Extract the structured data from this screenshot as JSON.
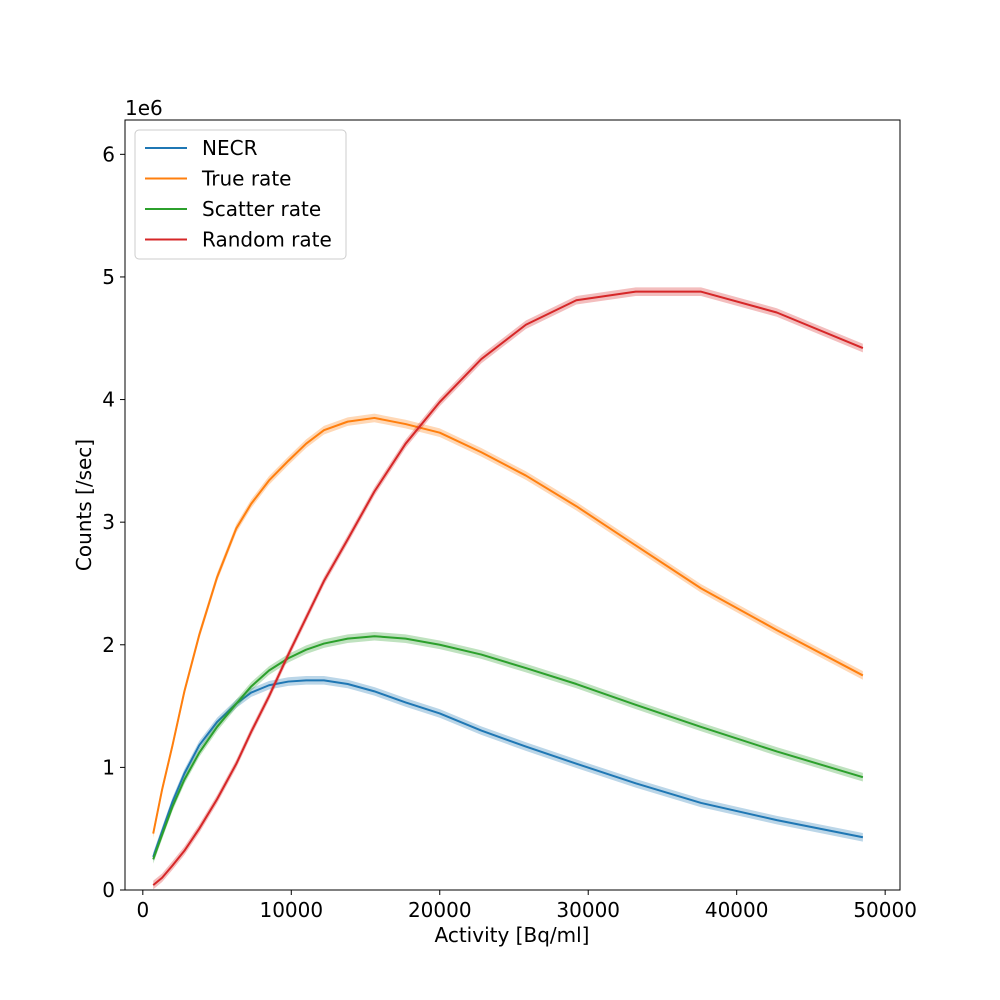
{
  "chart_data": {
    "type": "line",
    "title": "",
    "xlabel": "Activity [Bq/ml]",
    "ylabel": "Counts [/sec]",
    "y_multiplier": "1e6",
    "xlim": [
      -1200,
      51000
    ],
    "ylim": [
      0,
      6.28
    ],
    "x_ticks": [
      0,
      10000,
      20000,
      30000,
      40000,
      50000
    ],
    "y_ticks": [
      0,
      1,
      2,
      3,
      4,
      5,
      6
    ],
    "grid": false,
    "legend_position": "top-left",
    "series": [
      {
        "name": "NECR",
        "color": "#1f77b4",
        "x": [
          700,
          1300,
          2000,
          2800,
          3800,
          5000,
          6300,
          7300,
          8500,
          9800,
          11000,
          12200,
          13800,
          15600,
          17700,
          20000,
          22800,
          25800,
          29200,
          33200,
          37600,
          42700,
          48500
        ],
        "y": [
          0.27,
          0.48,
          0.72,
          0.95,
          1.18,
          1.37,
          1.52,
          1.61,
          1.67,
          1.7,
          1.71,
          1.71,
          1.68,
          1.62,
          1.53,
          1.44,
          1.3,
          1.17,
          1.03,
          0.87,
          0.71,
          0.57,
          0.43
        ]
      },
      {
        "name": "True rate",
        "color": "#ff7f0e",
        "x": [
          700,
          1300,
          2000,
          2800,
          3800,
          5000,
          6300,
          7300,
          8500,
          9800,
          11000,
          12200,
          13800,
          15600,
          17700,
          20000,
          22800,
          25800,
          29200,
          33200,
          37600,
          42700,
          48500
        ],
        "y": [
          0.46,
          0.82,
          1.18,
          1.62,
          2.08,
          2.55,
          2.95,
          3.15,
          3.34,
          3.5,
          3.64,
          3.75,
          3.82,
          3.85,
          3.8,
          3.73,
          3.57,
          3.38,
          3.13,
          2.81,
          2.46,
          2.12,
          1.75
        ]
      },
      {
        "name": "Scatter rate",
        "color": "#2ca02c",
        "x": [
          700,
          1300,
          2000,
          2800,
          3800,
          5000,
          6300,
          7300,
          8500,
          9800,
          11000,
          12200,
          13800,
          15600,
          17700,
          20000,
          22800,
          25800,
          29200,
          33200,
          37600,
          42700,
          48500
        ],
        "y": [
          0.25,
          0.45,
          0.68,
          0.9,
          1.12,
          1.33,
          1.52,
          1.66,
          1.79,
          1.89,
          1.96,
          2.01,
          2.05,
          2.07,
          2.05,
          2.0,
          1.92,
          1.81,
          1.68,
          1.51,
          1.33,
          1.13,
          0.92
        ]
      },
      {
        "name": "Random rate",
        "color": "#d62728",
        "x": [
          700,
          1300,
          2000,
          2800,
          3800,
          5000,
          6300,
          7300,
          8500,
          9800,
          11000,
          12200,
          13800,
          15600,
          17700,
          20000,
          22800,
          25800,
          29200,
          33200,
          37600,
          42700,
          48500
        ],
        "y": [
          0.04,
          0.1,
          0.2,
          0.32,
          0.5,
          0.74,
          1.03,
          1.29,
          1.58,
          1.92,
          2.22,
          2.52,
          2.86,
          3.25,
          3.64,
          3.98,
          4.33,
          4.61,
          4.81,
          4.88,
          4.88,
          4.71,
          4.42
        ]
      }
    ]
  }
}
